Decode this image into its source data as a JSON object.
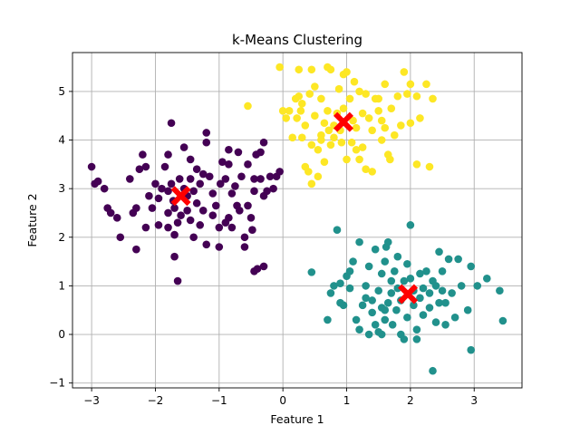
{
  "chart_data": {
    "type": "scatter",
    "title": "k-Means Clustering",
    "xlabel": "Feature 1",
    "ylabel": "Feature 2",
    "xlim": [
      -3.3,
      3.75
    ],
    "ylim": [
      -1.1,
      5.8
    ],
    "xticks": [
      -3,
      -2,
      -1,
      0,
      1,
      2,
      3
    ],
    "yticks": [
      -1,
      0,
      1,
      2,
      3,
      4,
      5
    ],
    "grid": true,
    "legend": "none",
    "series": [
      {
        "color": "#440154",
        "points": [
          [
            -3.0,
            3.45
          ],
          [
            -2.95,
            3.1
          ],
          [
            -2.9,
            3.15
          ],
          [
            -2.8,
            3.0
          ],
          [
            -2.75,
            2.6
          ],
          [
            -2.7,
            2.5
          ],
          [
            -2.6,
            2.4
          ],
          [
            -2.55,
            2.0
          ],
          [
            -2.4,
            3.2
          ],
          [
            -2.35,
            2.5
          ],
          [
            -2.3,
            2.6
          ],
          [
            -2.3,
            1.75
          ],
          [
            -2.25,
            3.4
          ],
          [
            -2.2,
            3.7
          ],
          [
            -2.15,
            3.45
          ],
          [
            -2.15,
            2.2
          ],
          [
            -2.1,
            2.85
          ],
          [
            -2.05,
            2.6
          ],
          [
            -2.0,
            3.1
          ],
          [
            -1.95,
            2.8
          ],
          [
            -1.95,
            2.25
          ],
          [
            -1.9,
            3.0
          ],
          [
            -1.85,
            3.45
          ],
          [
            -1.8,
            3.7
          ],
          [
            -1.8,
            2.95
          ],
          [
            -1.8,
            2.5
          ],
          [
            -1.8,
            2.2
          ],
          [
            -1.75,
            4.35
          ],
          [
            -1.75,
            3.1
          ],
          [
            -1.72,
            2.75
          ],
          [
            -1.7,
            2.6
          ],
          [
            -1.7,
            2.05
          ],
          [
            -1.7,
            1.6
          ],
          [
            -1.65,
            2.3
          ],
          [
            -1.65,
            1.1
          ],
          [
            -1.62,
            3.2
          ],
          [
            -1.6,
            2.45
          ],
          [
            -1.55,
            3.85
          ],
          [
            -1.55,
            3.0
          ],
          [
            -1.5,
            2.85
          ],
          [
            -1.5,
            2.55
          ],
          [
            -1.45,
            3.6
          ],
          [
            -1.45,
            3.2
          ],
          [
            -1.45,
            2.35
          ],
          [
            -1.4,
            2.95
          ],
          [
            -1.4,
            2.0
          ],
          [
            -1.35,
            3.4
          ],
          [
            -1.35,
            2.7
          ],
          [
            -1.3,
            3.1
          ],
          [
            -1.3,
            2.25
          ],
          [
            -1.25,
            3.3
          ],
          [
            -1.25,
            2.55
          ],
          [
            -1.2,
            4.15
          ],
          [
            -1.2,
            3.95
          ],
          [
            -1.2,
            1.85
          ],
          [
            -1.15,
            3.25
          ],
          [
            -1.1,
            2.9
          ],
          [
            -1.1,
            2.45
          ],
          [
            -1.05,
            2.65
          ],
          [
            -1.0,
            2.2
          ],
          [
            -1.0,
            1.8
          ],
          [
            -0.98,
            3.1
          ],
          [
            -0.95,
            3.55
          ],
          [
            -0.9,
            3.2
          ],
          [
            -0.9,
            2.3
          ],
          [
            -0.85,
            3.8
          ],
          [
            -0.85,
            3.5
          ],
          [
            -0.85,
            2.4
          ],
          [
            -0.8,
            2.2
          ],
          [
            -0.8,
            2.9
          ],
          [
            -0.75,
            3.05
          ],
          [
            -0.72,
            2.65
          ],
          [
            -0.7,
            3.75
          ],
          [
            -0.68,
            2.55
          ],
          [
            -0.65,
            3.25
          ],
          [
            -0.6,
            1.8
          ],
          [
            -0.6,
            2.0
          ],
          [
            -0.55,
            3.5
          ],
          [
            -0.55,
            2.65
          ],
          [
            -0.5,
            2.4
          ],
          [
            -0.48,
            2.15
          ],
          [
            -0.45,
            3.2
          ],
          [
            -0.45,
            2.95
          ],
          [
            -0.42,
            3.7
          ],
          [
            -0.4,
            1.35
          ],
          [
            -0.35,
            3.75
          ],
          [
            -0.35,
            3.2
          ],
          [
            -0.3,
            1.4
          ],
          [
            -0.3,
            2.85
          ],
          [
            -0.2,
            3.25
          ],
          [
            -0.15,
            3.0
          ],
          [
            -0.1,
            3.25
          ],
          [
            -0.05,
            3.35
          ],
          [
            -0.45,
            1.3
          ],
          [
            -0.25,
            2.95
          ],
          [
            -0.3,
            3.95
          ]
        ]
      },
      {
        "color": "#21918c",
        "points": [
          [
            0.45,
            1.28
          ],
          [
            0.7,
            0.3
          ],
          [
            0.75,
            0.85
          ],
          [
            0.8,
            1.0
          ],
          [
            0.85,
            2.15
          ],
          [
            0.9,
            1.05
          ],
          [
            0.95,
            0.6
          ],
          [
            1.0,
            1.2
          ],
          [
            1.05,
            1.3
          ],
          [
            1.05,
            0.95
          ],
          [
            1.1,
            1.5
          ],
          [
            1.15,
            0.3
          ],
          [
            1.2,
            1.9
          ],
          [
            1.2,
            0.1
          ],
          [
            1.25,
            0.6
          ],
          [
            1.3,
            1.0
          ],
          [
            1.3,
            0.75
          ],
          [
            1.35,
            1.4
          ],
          [
            1.4,
            0.7
          ],
          [
            1.4,
            0.45
          ],
          [
            1.45,
            1.75
          ],
          [
            1.45,
            0.2
          ],
          [
            1.5,
            0.9
          ],
          [
            1.5,
            0.05
          ],
          [
            1.55,
            1.25
          ],
          [
            1.55,
            0.55
          ],
          [
            1.6,
            0.3
          ],
          [
            1.6,
            1.5
          ],
          [
            1.62,
            1.8
          ],
          [
            1.65,
            1.9
          ],
          [
            1.65,
            0.65
          ],
          [
            1.7,
            1.1
          ],
          [
            1.7,
            0.85
          ],
          [
            1.72,
            0.2
          ],
          [
            1.75,
            1.3
          ],
          [
            1.78,
            0.5
          ],
          [
            1.8,
            1.6
          ],
          [
            1.8,
            0.95
          ],
          [
            1.85,
            0.7
          ],
          [
            1.85,
            0.0
          ],
          [
            1.9,
            -0.1
          ],
          [
            1.9,
            1.1
          ],
          [
            1.95,
            0.35
          ],
          [
            1.95,
            1.45
          ],
          [
            2.0,
            2.25
          ],
          [
            2.0,
            1.15
          ],
          [
            2.05,
            0.6
          ],
          [
            2.05,
            0.9
          ],
          [
            2.1,
            0.1
          ],
          [
            2.1,
            -0.1
          ],
          [
            2.15,
            1.25
          ],
          [
            2.15,
            0.75
          ],
          [
            2.2,
            0.4
          ],
          [
            2.2,
            0.95
          ],
          [
            2.25,
            1.3
          ],
          [
            2.3,
            0.55
          ],
          [
            2.3,
            0.85
          ],
          [
            2.35,
            -0.75
          ],
          [
            2.35,
            1.1
          ],
          [
            2.4,
            1.0
          ],
          [
            2.4,
            0.25
          ],
          [
            2.45,
            0.65
          ],
          [
            2.45,
            1.7
          ],
          [
            2.5,
            0.9
          ],
          [
            2.5,
            1.3
          ],
          [
            2.55,
            0.2
          ],
          [
            2.55,
            0.65
          ],
          [
            2.6,
            1.55
          ],
          [
            2.65,
            0.85
          ],
          [
            2.7,
            0.35
          ],
          [
            2.75,
            1.55
          ],
          [
            2.8,
            1.0
          ],
          [
            2.9,
            0.5
          ],
          [
            2.95,
            1.4
          ],
          [
            2.95,
            -0.32
          ],
          [
            3.05,
            1.0
          ],
          [
            3.2,
            1.15
          ],
          [
            3.4,
            0.9
          ],
          [
            3.45,
            0.28
          ],
          [
            0.9,
            0.65
          ],
          [
            1.35,
            0.0
          ],
          [
            1.55,
            0.0
          ],
          [
            1.6,
            0.5
          ]
        ]
      },
      {
        "color": "#fde725",
        "points": [
          [
            -0.55,
            4.7
          ],
          [
            -0.05,
            5.5
          ],
          [
            0.0,
            4.6
          ],
          [
            0.05,
            4.45
          ],
          [
            0.1,
            4.6
          ],
          [
            0.15,
            4.05
          ],
          [
            0.2,
            4.85
          ],
          [
            0.22,
            4.45
          ],
          [
            0.25,
            4.9
          ],
          [
            0.25,
            5.45
          ],
          [
            0.28,
            4.6
          ],
          [
            0.3,
            4.75
          ],
          [
            0.3,
            4.05
          ],
          [
            0.35,
            3.45
          ],
          [
            0.35,
            4.3
          ],
          [
            0.4,
            3.35
          ],
          [
            0.42,
            4.95
          ],
          [
            0.45,
            5.45
          ],
          [
            0.45,
            3.9
          ],
          [
            0.5,
            5.1
          ],
          [
            0.5,
            4.5
          ],
          [
            0.55,
            3.8
          ],
          [
            0.55,
            3.25
          ],
          [
            0.6,
            4.85
          ],
          [
            0.6,
            4.1
          ],
          [
            0.65,
            4.35
          ],
          [
            0.65,
            3.55
          ],
          [
            0.7,
            5.5
          ],
          [
            0.7,
            4.6
          ],
          [
            0.72,
            4.2
          ],
          [
            0.75,
            5.45
          ],
          [
            0.75,
            3.9
          ],
          [
            0.8,
            4.3
          ],
          [
            0.8,
            4.05
          ],
          [
            0.85,
            4.55
          ],
          [
            0.88,
            5.05
          ],
          [
            0.9,
            4.2
          ],
          [
            0.92,
            3.95
          ],
          [
            0.95,
            4.65
          ],
          [
            0.95,
            5.35
          ],
          [
            1.0,
            5.4
          ],
          [
            1.0,
            3.6
          ],
          [
            1.05,
            4.85
          ],
          [
            1.08,
            3.95
          ],
          [
            1.1,
            4.4
          ],
          [
            1.12,
            5.2
          ],
          [
            1.15,
            4.25
          ],
          [
            1.2,
            5.0
          ],
          [
            1.2,
            3.6
          ],
          [
            1.25,
            4.55
          ],
          [
            1.25,
            3.85
          ],
          [
            1.3,
            4.95
          ],
          [
            1.3,
            3.4
          ],
          [
            1.35,
            4.45
          ],
          [
            1.4,
            4.2
          ],
          [
            1.4,
            3.35
          ],
          [
            1.45,
            4.85
          ],
          [
            1.5,
            4.6
          ],
          [
            1.55,
            4.4
          ],
          [
            1.55,
            4.0
          ],
          [
            1.6,
            5.15
          ],
          [
            1.6,
            4.25
          ],
          [
            1.65,
            3.7
          ],
          [
            1.68,
            3.6
          ],
          [
            1.7,
            4.65
          ],
          [
            1.75,
            4.1
          ],
          [
            1.8,
            4.9
          ],
          [
            1.85,
            4.3
          ],
          [
            1.9,
            5.4
          ],
          [
            1.95,
            4.95
          ],
          [
            2.0,
            5.15
          ],
          [
            2.0,
            4.35
          ],
          [
            2.1,
            4.9
          ],
          [
            2.1,
            3.5
          ],
          [
            2.15,
            4.45
          ],
          [
            2.25,
            5.15
          ],
          [
            2.3,
            3.45
          ],
          [
            2.35,
            4.85
          ],
          [
            0.45,
            3.1
          ],
          [
            0.6,
            4.0
          ],
          [
            1.15,
            3.8
          ],
          [
            1.5,
            4.85
          ]
        ]
      },
      {
        "name": "centroids",
        "color": "#ff0000",
        "marker": "X",
        "points": [
          [
            -1.6,
            2.85
          ],
          [
            0.95,
            4.37
          ],
          [
            1.96,
            0.83
          ]
        ]
      }
    ]
  }
}
